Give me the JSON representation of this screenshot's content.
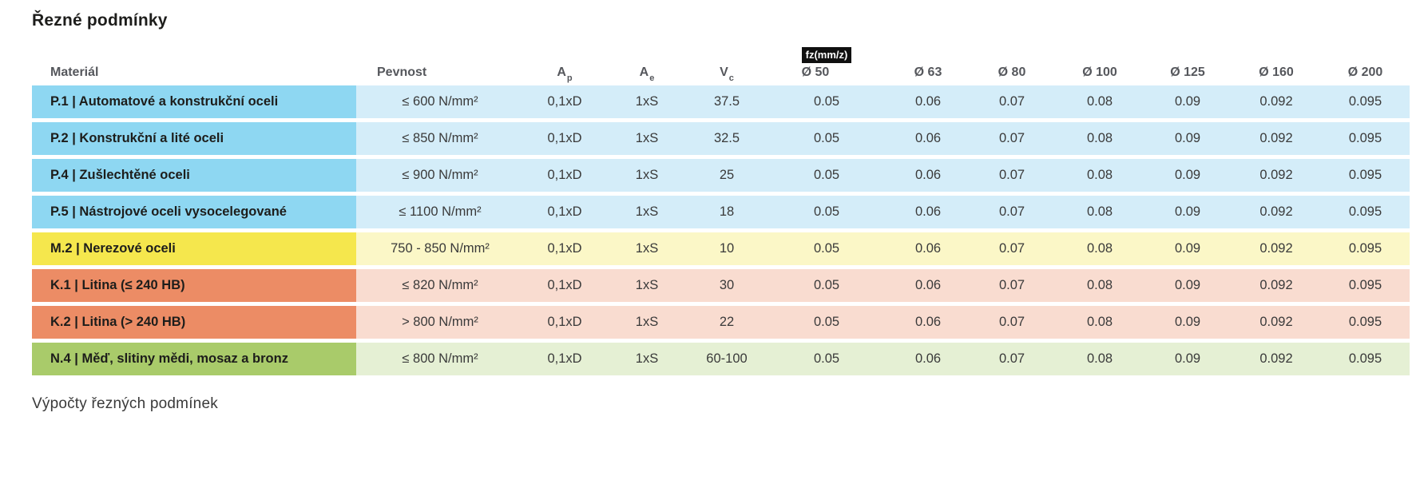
{
  "page": {
    "title": "Řezné podmínky",
    "footer_heading": "Výpočty řezných podmínek"
  },
  "table": {
    "fz_badge": "fz(mm/z)",
    "columns": {
      "material": "Materiál",
      "pevnost": "Pevnost",
      "ap_main": "A",
      "ap_sub": "p",
      "ae_main": "A",
      "ae_sub": "e",
      "vc_main": "V",
      "vc_sub": "c",
      "diameters": [
        "Ø 50",
        "Ø 63",
        "Ø 80",
        "Ø 100",
        "Ø 125",
        "Ø 160",
        "Ø 200"
      ]
    },
    "colors": {
      "blue": {
        "label": "#8ed7f2",
        "row": "#d4edf9"
      },
      "yellow": {
        "label": "#f5e74d",
        "row": "#fbf7c7"
      },
      "orange": {
        "label": "#ec8c65",
        "row": "#f9dcd0"
      },
      "green": {
        "label": "#a9cb6a",
        "row": "#e5f0d4"
      }
    },
    "rows": [
      {
        "material": "P.1 | Automatové a konstrukční oceli",
        "pevnost": "≤ 600 N/mm²",
        "ap": "0,1xD",
        "ae": "1xS",
        "vc": "37.5",
        "fz": [
          "0.05",
          "0.06",
          "0.07",
          "0.08",
          "0.09",
          "0.092",
          "0.095"
        ],
        "color_group": "blue"
      },
      {
        "material": "P.2 | Konstrukční a lité oceli",
        "pevnost": "≤ 850 N/mm²",
        "ap": "0,1xD",
        "ae": "1xS",
        "vc": "32.5",
        "fz": [
          "0.05",
          "0.06",
          "0.07",
          "0.08",
          "0.09",
          "0.092",
          "0.095"
        ],
        "color_group": "blue"
      },
      {
        "material": "P.4 | Zušlechtěné oceli",
        "pevnost": "≤ 900 N/mm²",
        "ap": "0,1xD",
        "ae": "1xS",
        "vc": "25",
        "fz": [
          "0.05",
          "0.06",
          "0.07",
          "0.08",
          "0.09",
          "0.092",
          "0.095"
        ],
        "color_group": "blue"
      },
      {
        "material": "P.5 | Nástrojové oceli vysocelegované",
        "pevnost": "≤ 1100 N/mm²",
        "ap": "0,1xD",
        "ae": "1xS",
        "vc": "18",
        "fz": [
          "0.05",
          "0.06",
          "0.07",
          "0.08",
          "0.09",
          "0.092",
          "0.095"
        ],
        "color_group": "blue"
      },
      {
        "material": "M.2 | Nerezové oceli",
        "pevnost": "750 - 850 N/mm²",
        "ap": "0,1xD",
        "ae": "1xS",
        "vc": "10",
        "fz": [
          "0.05",
          "0.06",
          "0.07",
          "0.08",
          "0.09",
          "0.092",
          "0.095"
        ],
        "color_group": "yellow"
      },
      {
        "material": "K.1 | Litina (≤ 240 HB)",
        "pevnost": "≤ 820 N/mm²",
        "ap": "0,1xD",
        "ae": "1xS",
        "vc": "30",
        "fz": [
          "0.05",
          "0.06",
          "0.07",
          "0.08",
          "0.09",
          "0.092",
          "0.095"
        ],
        "color_group": "orange"
      },
      {
        "material": "K.2 | Litina (> 240 HB)",
        "pevnost": "> 800 N/mm²",
        "ap": "0,1xD",
        "ae": "1xS",
        "vc": "22",
        "fz": [
          "0.05",
          "0.06",
          "0.07",
          "0.08",
          "0.09",
          "0.092",
          "0.095"
        ],
        "color_group": "orange"
      },
      {
        "material": "N.4 | Měď, slitiny mědi, mosaz a bronz",
        "pevnost": "≤ 800 N/mm²",
        "ap": "0,1xD",
        "ae": "1xS",
        "vc": "60-100",
        "fz": [
          "0.05",
          "0.06",
          "0.07",
          "0.08",
          "0.09",
          "0.092",
          "0.095"
        ],
        "color_group": "green"
      }
    ]
  }
}
